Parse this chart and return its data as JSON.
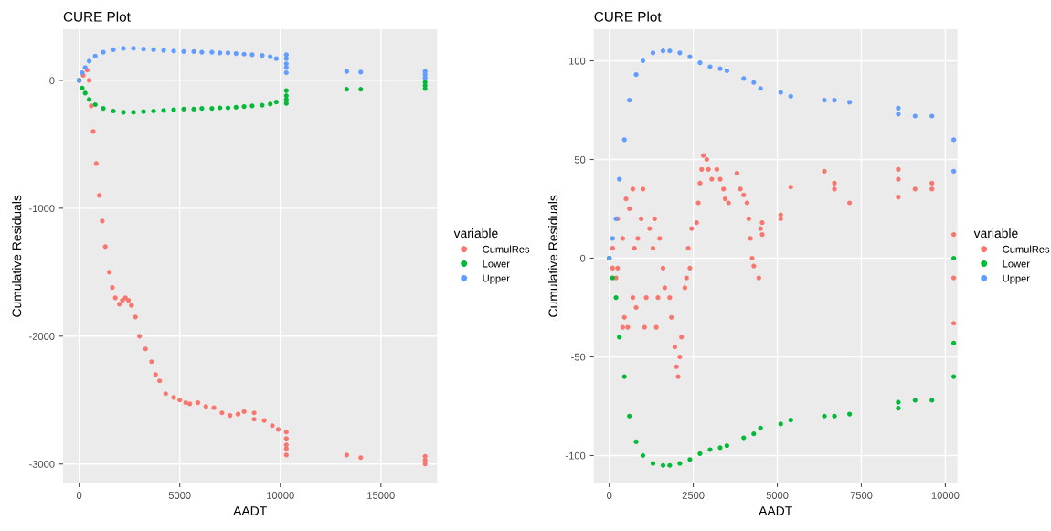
{
  "chart_data": [
    {
      "type": "scatter",
      "title": "CURE Plot",
      "xlabel": "AADT",
      "ylabel": "Cumulative Residuals",
      "legend_title": "variable",
      "legend": "right",
      "grid": true,
      "marker": "circle",
      "xlim": [
        -800,
        17800
      ],
      "xticks": [
        0,
        5000,
        10000,
        15000
      ],
      "ylim": [
        -3150,
        400
      ],
      "yticks": [
        -3000,
        -2000,
        -1000,
        0
      ],
      "series": [
        {
          "name": "CumulRes",
          "color": "#f8766d",
          "x": [
            0,
            200,
            400,
            500,
            600,
            700,
            850,
            1000,
            1150,
            1300,
            1500,
            1650,
            1800,
            2000,
            2150,
            2300,
            2450,
            2600,
            2800,
            3000,
            3300,
            3600,
            3800,
            4000,
            4300,
            4700,
            5000,
            5300,
            5500,
            5900,
            6300,
            6700,
            7100,
            7500,
            7900,
            8200,
            8700,
            8700,
            9200,
            9600,
            9900,
            10300,
            10300,
            10300,
            10300,
            10300,
            13300,
            14000,
            17200,
            17200,
            17200
          ],
          "values": [
            0,
            40,
            80,
            0,
            -200,
            -400,
            -650,
            -900,
            -1100,
            -1300,
            -1500,
            -1620,
            -1700,
            -1750,
            -1720,
            -1700,
            -1720,
            -1760,
            -1850,
            -2000,
            -2100,
            -2200,
            -2300,
            -2350,
            -2450,
            -2480,
            -2500,
            -2520,
            -2530,
            -2520,
            -2550,
            -2560,
            -2600,
            -2620,
            -2610,
            -2590,
            -2600,
            -2650,
            -2660,
            -2700,
            -2730,
            -2750,
            -2800,
            -2850,
            -2880,
            -2930,
            -2930,
            -2950,
            -2940,
            -2970,
            -3000
          ]
        },
        {
          "name": "Lower",
          "color": "#00ba38",
          "x": [
            0,
            150,
            300,
            500,
            800,
            1200,
            1700,
            2200,
            2700,
            3200,
            3700,
            4200,
            4700,
            5200,
            5700,
            6100,
            6600,
            7000,
            7400,
            7800,
            8200,
            8600,
            9100,
            9500,
            9800,
            10300,
            10300,
            10300,
            10300,
            13300,
            14000,
            17200,
            17200,
            17200
          ],
          "values": [
            0,
            -60,
            -100,
            -150,
            -190,
            -220,
            -240,
            -250,
            -250,
            -245,
            -240,
            -235,
            -230,
            -225,
            -225,
            -220,
            -220,
            -215,
            -215,
            -210,
            -205,
            -200,
            -195,
            -185,
            -170,
            -80,
            -120,
            -150,
            -180,
            -70,
            -70,
            -15,
            -40,
            -65
          ]
        },
        {
          "name": "Upper",
          "color": "#619cff",
          "x": [
            0,
            150,
            300,
            500,
            800,
            1200,
            1700,
            2200,
            2700,
            3200,
            3700,
            4200,
            4700,
            5200,
            5700,
            6100,
            6600,
            7000,
            7400,
            7800,
            8200,
            8600,
            9100,
            9500,
            9800,
            10300,
            10300,
            10300,
            10300,
            10300,
            13300,
            14000,
            17200,
            17200,
            17200
          ],
          "values": [
            0,
            60,
            100,
            150,
            190,
            220,
            240,
            250,
            250,
            245,
            240,
            235,
            230,
            225,
            225,
            220,
            220,
            215,
            215,
            210,
            205,
            200,
            195,
            185,
            170,
            200,
            170,
            130,
            100,
            60,
            70,
            65,
            70,
            45,
            20
          ]
        }
      ]
    },
    {
      "type": "scatter",
      "title": "CURE Plot",
      "xlabel": "AADT",
      "ylabel": "Cumulative Residuals",
      "legend_title": "variable",
      "legend": "right",
      "grid": true,
      "marker": "circle",
      "xlim": [
        -460,
        10360
      ],
      "xticks": [
        0,
        2500,
        5000,
        7500,
        10000
      ],
      "ylim": [
        -114,
        116
      ],
      "yticks": [
        -100,
        -50,
        0,
        50,
        100
      ],
      "series": [
        {
          "name": "CumulRes",
          "color": "#f8766d",
          "x": [
            0,
            100,
            100,
            200,
            250,
            250,
            400,
            400,
            450,
            500,
            550,
            600,
            700,
            700,
            750,
            800,
            850,
            950,
            1000,
            1050,
            1100,
            1200,
            1300,
            1350,
            1400,
            1450,
            1500,
            1600,
            1650,
            1800,
            1850,
            1950,
            2000,
            2050,
            2100,
            2150,
            2250,
            2300,
            2350,
            2400,
            2450,
            2600,
            2650,
            2700,
            2750,
            2800,
            2900,
            2950,
            3050,
            3200,
            3300,
            3400,
            3450,
            3550,
            3800,
            3900,
            4000,
            4100,
            4150,
            4200,
            4250,
            4300,
            4450,
            4500,
            4550,
            4550,
            5100,
            5100,
            5400,
            6400,
            6700,
            6700,
            7150,
            8600,
            8600,
            8600,
            9100,
            9600,
            9600,
            10250,
            10250,
            10250
          ],
          "values": [
            0,
            5,
            -5,
            -10,
            20,
            -5,
            10,
            -35,
            -30,
            30,
            -35,
            25,
            35,
            -20,
            5,
            -25,
            10,
            20,
            35,
            -35,
            -20,
            15,
            5,
            20,
            -35,
            -20,
            10,
            -5,
            -15,
            -20,
            -30,
            -45,
            -55,
            -60,
            -50,
            -40,
            -15,
            -10,
            5,
            -5,
            15,
            18,
            28,
            38,
            45,
            52,
            50,
            45,
            40,
            45,
            40,
            35,
            30,
            28,
            43,
            35,
            32,
            28,
            20,
            10,
            0,
            -4,
            -10,
            15,
            18,
            12,
            22,
            20,
            36,
            44,
            38,
            35,
            28,
            45,
            40,
            31,
            35,
            38,
            35,
            12,
            -10,
            -33
          ]
        },
        {
          "name": "Lower",
          "color": "#00ba38",
          "x": [
            0,
            100,
            200,
            300,
            450,
            600,
            800,
            1000,
            1300,
            1600,
            1800,
            2100,
            2400,
            2700,
            3000,
            3300,
            3500,
            4000,
            4300,
            4500,
            5100,
            5400,
            6400,
            6700,
            7150,
            8600,
            8600,
            9100,
            9600,
            10250,
            10250,
            10250
          ],
          "values": [
            0,
            -10,
            -20,
            -40,
            -60,
            -80,
            -93,
            -100,
            -104,
            -105,
            -105,
            -104,
            -102,
            -99,
            -97,
            -96,
            -95,
            -91,
            -89,
            -86,
            -84,
            -82,
            -80,
            -80,
            -79,
            -73,
            -76,
            -72,
            -72,
            0,
            -43,
            -60
          ]
        },
        {
          "name": "Upper",
          "color": "#619cff",
          "x": [
            0,
            100,
            200,
            300,
            450,
            600,
            800,
            1000,
            1300,
            1600,
            1800,
            2100,
            2400,
            2700,
            3000,
            3300,
            3500,
            4000,
            4300,
            4500,
            5100,
            5400,
            6400,
            6700,
            7150,
            8600,
            8600,
            9100,
            9600,
            10250,
            10250
          ],
          "values": [
            0,
            10,
            20,
            40,
            60,
            80,
            93,
            100,
            104,
            105,
            105,
            104,
            102,
            99,
            97,
            96,
            95,
            91,
            89,
            86,
            84,
            82,
            80,
            80,
            79,
            76,
            73,
            72,
            72,
            60,
            44
          ]
        }
      ]
    }
  ]
}
